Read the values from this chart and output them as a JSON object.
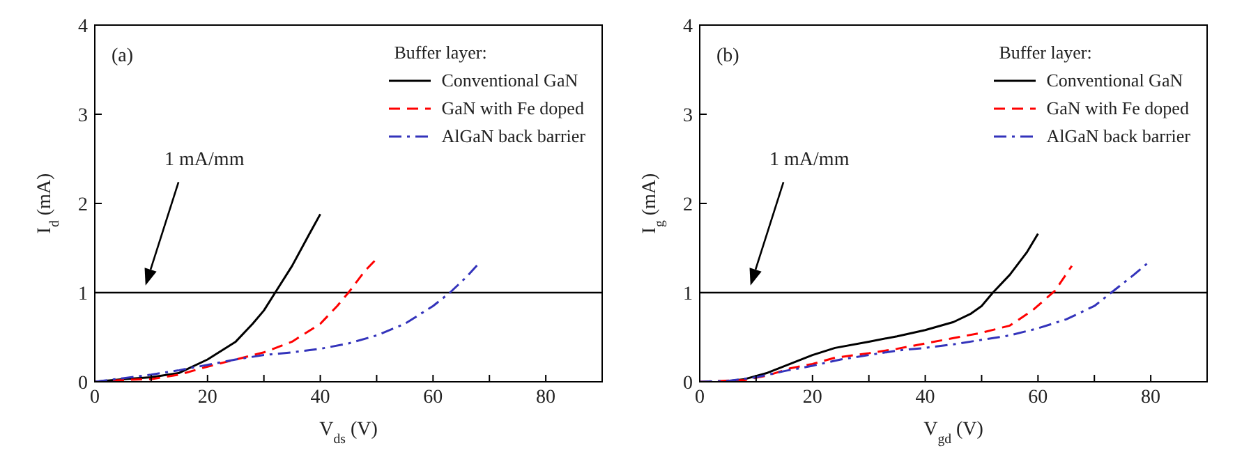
{
  "chart_data": [
    {
      "type": "line",
      "xlabel": "V$_{ds}$ (V)",
      "ylabel": "I$_{d}$ (mA)",
      "legend_title": "Buffer layer:",
      "legend": "top right",
      "marker": "none",
      "xlim": [
        0,
        90
      ],
      "ylim": [
        0,
        4
      ],
      "xticks": [
        0,
        {
          "value": 10,
          "label": null
        },
        20,
        {
          "value": 30,
          "label": null
        },
        40,
        {
          "value": 50,
          "label": null
        },
        60,
        {
          "value": 70,
          "label": null
        },
        80
      ],
      "yticks": [
        0,
        1,
        2,
        3,
        4
      ],
      "ref_lines": [
        {
          "axis": "y",
          "value": 1,
          "color": "#000000"
        }
      ],
      "annotations": [
        "(a)",
        "1 mA/mm"
      ],
      "grid": false,
      "series": [
        {
          "name": "Conventional GaN",
          "color": "#000000",
          "line_style": "solid",
          "x": [
            0,
            5,
            10,
            15,
            20,
            25,
            28,
            30,
            32,
            35,
            38,
            40
          ],
          "values": [
            0,
            0.03,
            0.05,
            0.1,
            0.25,
            0.45,
            0.65,
            0.8,
            1.0,
            1.3,
            1.65,
            1.88
          ]
        },
        {
          "name": "GaN with Fe doped",
          "color": "#ff0000",
          "line_style": "dashed",
          "x": [
            0,
            5,
            10,
            15,
            20,
            25,
            30,
            35,
            40,
            43,
            45,
            48,
            50
          ],
          "values": [
            0,
            0.02,
            0.03,
            0.08,
            0.17,
            0.25,
            0.33,
            0.45,
            0.65,
            0.85,
            1.0,
            1.25,
            1.38
          ]
        },
        {
          "name": "AlGaN back barrier",
          "color": "#3333bb",
          "line_style": "dashdot",
          "x": [
            0,
            5,
            10,
            15,
            20,
            25,
            30,
            35,
            40,
            45,
            50,
            55,
            60,
            63,
            66,
            68
          ],
          "values": [
            0,
            0.04,
            0.08,
            0.13,
            0.19,
            0.25,
            0.3,
            0.33,
            0.37,
            0.43,
            0.52,
            0.65,
            0.85,
            1.0,
            1.18,
            1.32
          ]
        }
      ]
    },
    {
      "type": "line",
      "xlabel": "V$_{gd}$ (V)",
      "ylabel": "I$_{g}$ (mA)",
      "legend_title": "Buffer layer:",
      "legend": "top right",
      "marker": "none",
      "xlim": [
        0,
        90
      ],
      "ylim": [
        0,
        4
      ],
      "xticks": [
        0,
        {
          "value": 10,
          "label": null
        },
        20,
        {
          "value": 30,
          "label": null
        },
        40,
        {
          "value": 50,
          "label": null
        },
        60,
        {
          "value": 70,
          "label": null
        },
        80
      ],
      "yticks": [
        0,
        1,
        2,
        3,
        4
      ],
      "ref_lines": [
        {
          "axis": "y",
          "value": 1,
          "color": "#000000"
        }
      ],
      "annotations": [
        "(b)",
        "1 mA/mm"
      ],
      "grid": false,
      "series": [
        {
          "name": "Conventional GaN",
          "color": "#000000",
          "line_style": "solid",
          "x": [
            4,
            8,
            12,
            16,
            20,
            24,
            30,
            35,
            40,
            45,
            48,
            50,
            52,
            55,
            58,
            60
          ],
          "values": [
            0,
            0.03,
            0.1,
            0.2,
            0.3,
            0.38,
            0.45,
            0.51,
            0.58,
            0.67,
            0.76,
            0.85,
            1.0,
            1.2,
            1.45,
            1.66
          ]
        },
        {
          "name": "GaN with Fe doped",
          "color": "#ff0000",
          "line_style": "dashed",
          "x": [
            0,
            8,
            12,
            16,
            20,
            24,
            30,
            35,
            40,
            45,
            50,
            55,
            59,
            63,
            66
          ],
          "values": [
            0,
            0.02,
            0.07,
            0.15,
            0.2,
            0.27,
            0.32,
            0.37,
            0.43,
            0.49,
            0.55,
            0.63,
            0.8,
            1.02,
            1.3
          ]
        },
        {
          "name": "AlGaN back barrier",
          "color": "#3333bb",
          "line_style": "dashdot",
          "x": [
            0,
            5,
            10,
            15,
            20,
            25,
            30,
            35,
            40,
            45,
            50,
            55,
            60,
            65,
            70,
            73,
            77,
            80
          ],
          "values": [
            0,
            0.01,
            0.05,
            0.12,
            0.18,
            0.25,
            0.3,
            0.35,
            0.38,
            0.42,
            0.47,
            0.52,
            0.6,
            0.7,
            0.85,
            1.0,
            1.2,
            1.36
          ]
        }
      ]
    }
  ]
}
